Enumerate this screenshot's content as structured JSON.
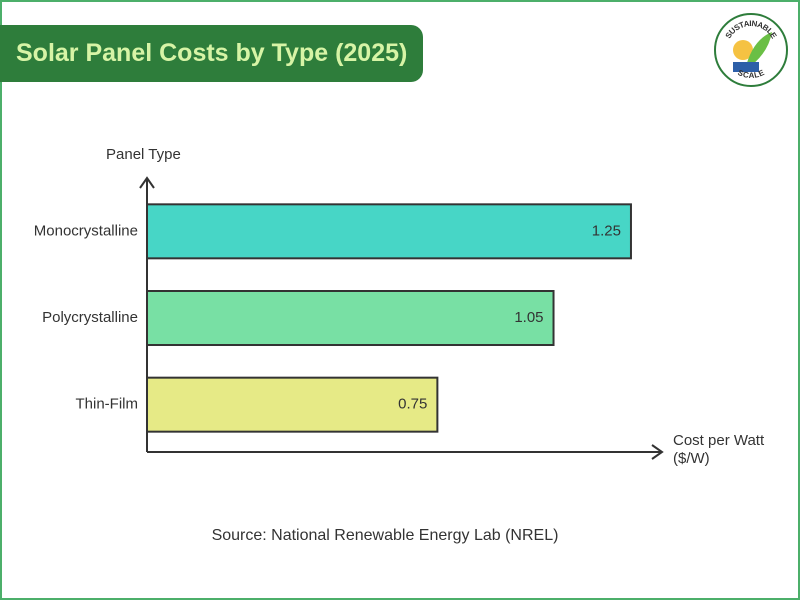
{
  "chart_data": {
    "type": "hbar",
    "title": "Solar Panel Costs by Type (2025)",
    "y_label": "Panel Type",
    "x_label": "Cost per Watt ($/W)",
    "categories": [
      "Monocrystalline",
      "Polycrystalline",
      "Thin-Film"
    ],
    "values": [
      1.25,
      1.05,
      0.75
    ],
    "colors": [
      "#47d6c6",
      "#78e0a4",
      "#e6ea86"
    ],
    "xlim": [
      0,
      1.325
    ],
    "source": "Source:  National Renewable Energy Lab (NREL)"
  },
  "logo": {
    "top": "SUSTAINABLE",
    "bottom": "SCALE"
  }
}
